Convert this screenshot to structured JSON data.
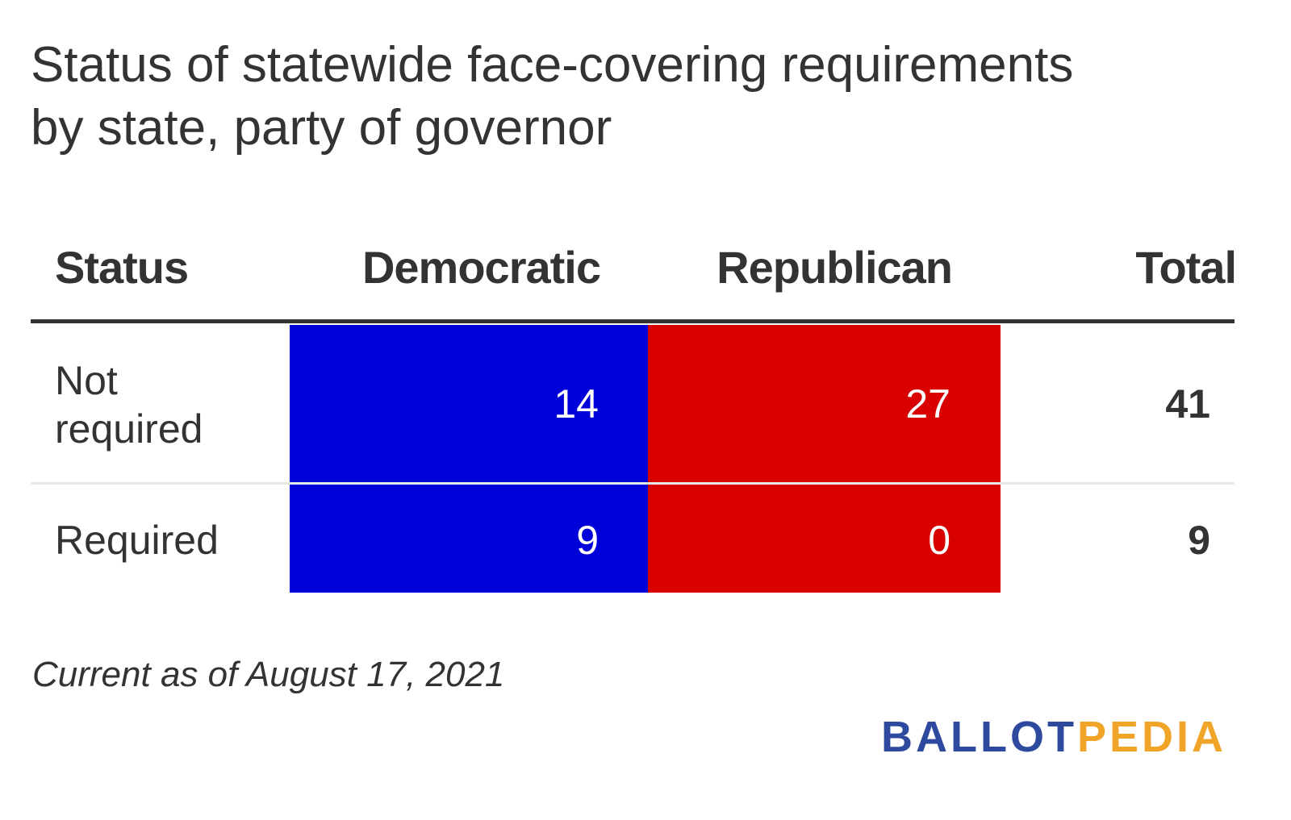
{
  "colors": {
    "democratic": "#0000d9",
    "republican": "#d90000",
    "text": "#333333",
    "logo_blue": "#2e4a9e",
    "logo_orange": "#f0a428"
  },
  "chart_data": {
    "type": "table",
    "title": "Status of statewide face-covering requirements by state, party of governor",
    "title_line1": "Status of statewide face-covering requirements",
    "title_line2": "by state, party of governor",
    "columns": [
      "Status",
      "Democratic",
      "Republican",
      "Total"
    ],
    "rows": [
      {
        "status": "Not required",
        "status_line1": "Not",
        "status_line2": "required",
        "democratic": "14",
        "republican": "27",
        "total": "41"
      },
      {
        "status": "Required",
        "democratic": "9",
        "republican": "0",
        "total": "9"
      }
    ],
    "footnote": "Current as of August 17, 2021"
  },
  "logo": {
    "part1": "BALLOT",
    "part2": "PEDIA"
  }
}
